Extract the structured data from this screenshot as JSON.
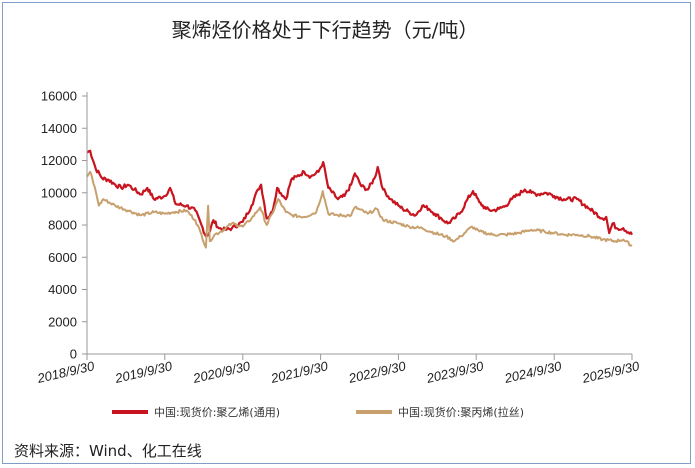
{
  "chart_data": {
    "type": "line",
    "title": "聚烯烃价格处于下行趋势（元/吨）",
    "source": "资料来源：Wind、化工在线",
    "ylim": [
      0,
      16000
    ],
    "yticks": [
      "0",
      "2000",
      "4000",
      "6000",
      "8000",
      "10000",
      "12000",
      "14000",
      "16000"
    ],
    "xlim": [
      "2018-09-30",
      "2025-09-30"
    ],
    "xticks": [
      "2018/9/30",
      "2019/9/30",
      "2020/9/30",
      "2021/9/30",
      "2022/9/30",
      "2023/9/30",
      "2024/9/30",
      "2025/9/30"
    ],
    "legend_position": "bottom",
    "grid": false,
    "series": [
      {
        "name": "中国:现货价:聚乙烯(通用)",
        "color": "#c8141e",
        "points": [
          [
            "2018-09-30",
            12500
          ],
          [
            "2018-10-15",
            12600
          ],
          [
            "2018-11-10",
            11500
          ],
          [
            "2018-12-10",
            10900
          ],
          [
            "2019-01-10",
            10800
          ],
          [
            "2019-02-10",
            10500
          ],
          [
            "2019-03-10",
            10300
          ],
          [
            "2019-04-10",
            10500
          ],
          [
            "2019-05-10",
            10200
          ],
          [
            "2019-06-10",
            9900
          ],
          [
            "2019-07-10",
            10300
          ],
          [
            "2019-08-10",
            9600
          ],
          [
            "2019-09-30",
            9800
          ],
          [
            "2019-10-25",
            10300
          ],
          [
            "2019-11-20",
            9300
          ],
          [
            "2020-01-10",
            9200
          ],
          [
            "2020-02-20",
            8900
          ],
          [
            "2020-03-20",
            8000
          ],
          [
            "2020-04-10",
            7300
          ],
          [
            "2020-04-25",
            7500
          ],
          [
            "2020-05-15",
            8300
          ],
          [
            "2020-06-10",
            7800
          ],
          [
            "2020-07-10",
            7700
          ],
          [
            "2020-08-10",
            7800
          ],
          [
            "2020-09-30",
            8200
          ],
          [
            "2020-11-10",
            9200
          ],
          [
            "2020-12-10",
            10200
          ],
          [
            "2020-12-25",
            10500
          ],
          [
            "2021-01-20",
            8400
          ],
          [
            "2021-02-15",
            8800
          ],
          [
            "2021-03-10",
            10300
          ],
          [
            "2021-04-20",
            9600
          ],
          [
            "2021-05-15",
            10800
          ],
          [
            "2021-06-10",
            11000
          ],
          [
            "2021-07-15",
            11300
          ],
          [
            "2021-08-15",
            11000
          ],
          [
            "2021-09-20",
            11300
          ],
          [
            "2021-10-12",
            11900
          ],
          [
            "2021-11-05",
            10300
          ],
          [
            "2021-12-20",
            9600
          ],
          [
            "2022-01-20",
            9800
          ],
          [
            "2022-02-20",
            10500
          ],
          [
            "2022-03-10",
            11200
          ],
          [
            "2022-04-10",
            10400
          ],
          [
            "2022-05-10",
            10200
          ],
          [
            "2022-06-10",
            10900
          ],
          [
            "2022-06-25",
            11600
          ],
          [
            "2022-07-20",
            10200
          ],
          [
            "2022-08-25",
            9600
          ],
          [
            "2022-09-30",
            9200
          ],
          [
            "2022-10-20",
            9000
          ],
          [
            "2022-11-20",
            8800
          ],
          [
            "2022-12-20",
            8600
          ],
          [
            "2023-01-20",
            9200
          ],
          [
            "2023-02-20",
            9000
          ],
          [
            "2023-03-20",
            8700
          ],
          [
            "2023-04-20",
            8400
          ],
          [
            "2023-05-20",
            8100
          ],
          [
            "2023-06-20",
            8400
          ],
          [
            "2023-07-20",
            8800
          ],
          [
            "2023-08-20",
            9600
          ],
          [
            "2023-09-15",
            10100
          ],
          [
            "2023-10-15",
            9400
          ],
          [
            "2023-11-15",
            9000
          ],
          [
            "2023-12-15",
            8900
          ],
          [
            "2024-01-15",
            9000
          ],
          [
            "2024-02-15",
            9200
          ],
          [
            "2024-03-15",
            9600
          ],
          [
            "2024-04-15",
            9900
          ],
          [
            "2024-05-15",
            10200
          ],
          [
            "2024-06-15",
            10000
          ],
          [
            "2024-07-15",
            9900
          ],
          [
            "2024-08-15",
            10000
          ],
          [
            "2024-09-15",
            9900
          ],
          [
            "2024-09-30",
            9800
          ],
          [
            "2024-11-15",
            9600
          ],
          [
            "2025-01-15",
            9600
          ],
          [
            "2025-03-15",
            9000
          ],
          [
            "2025-05-15",
            8400
          ],
          [
            "2025-06-01",
            8500
          ],
          [
            "2025-06-15",
            7500
          ],
          [
            "2025-07-01",
            8100
          ],
          [
            "2025-07-20",
            7800
          ],
          [
            "2025-08-20",
            7800
          ],
          [
            "2025-09-30",
            7400
          ]
        ]
      },
      {
        "name": "中国:现货价:聚丙烯(拉丝)",
        "color": "#c8a06e",
        "points": [
          [
            "2018-09-30",
            11000
          ],
          [
            "2018-10-15",
            11300
          ],
          [
            "2018-11-10",
            10100
          ],
          [
            "2018-11-25",
            9200
          ],
          [
            "2018-12-15",
            9600
          ],
          [
            "2019-02-10",
            9200
          ],
          [
            "2019-04-10",
            8900
          ],
          [
            "2019-06-10",
            8600
          ],
          [
            "2019-08-10",
            8800
          ],
          [
            "2019-09-30",
            8700
          ],
          [
            "2019-11-10",
            8800
          ],
          [
            "2020-01-10",
            8900
          ],
          [
            "2020-02-20",
            8300
          ],
          [
            "2020-03-20",
            7400
          ],
          [
            "2020-04-10",
            6600
          ],
          [
            "2020-04-20",
            9200
          ],
          [
            "2020-04-28",
            7000
          ],
          [
            "2020-05-20",
            7400
          ],
          [
            "2020-06-20",
            7600
          ],
          [
            "2020-08-10",
            8100
          ],
          [
            "2020-09-30",
            7900
          ],
          [
            "2020-11-10",
            8400
          ],
          [
            "2020-12-20",
            9100
          ],
          [
            "2021-01-20",
            8000
          ],
          [
            "2021-02-15",
            8700
          ],
          [
            "2021-03-15",
            9600
          ],
          [
            "2021-04-20",
            8800
          ],
          [
            "2021-05-20",
            8600
          ],
          [
            "2021-07-15",
            8500
          ],
          [
            "2021-09-10",
            8800
          ],
          [
            "2021-10-10",
            10100
          ],
          [
            "2021-11-05",
            8700
          ],
          [
            "2021-12-20",
            8600
          ],
          [
            "2022-02-20",
            8600
          ],
          [
            "2022-03-10",
            9100
          ],
          [
            "2022-05-10",
            8700
          ],
          [
            "2022-06-20",
            9000
          ],
          [
            "2022-07-20",
            8300
          ],
          [
            "2022-09-30",
            8100
          ],
          [
            "2022-11-20",
            7900
          ],
          [
            "2023-01-20",
            7800
          ],
          [
            "2023-03-20",
            7500
          ],
          [
            "2023-05-10",
            7300
          ],
          [
            "2023-06-20",
            7000
          ],
          [
            "2023-07-20",
            7300
          ],
          [
            "2023-09-10",
            7900
          ],
          [
            "2023-10-15",
            7600
          ],
          [
            "2023-12-15",
            7400
          ],
          [
            "2024-02-15",
            7400
          ],
          [
            "2024-04-15",
            7500
          ],
          [
            "2024-06-15",
            7700
          ],
          [
            "2024-08-15",
            7600
          ],
          [
            "2024-09-30",
            7500
          ],
          [
            "2024-11-15",
            7400
          ],
          [
            "2025-01-15",
            7400
          ],
          [
            "2025-03-15",
            7300
          ],
          [
            "2025-05-15",
            7100
          ],
          [
            "2025-07-15",
            7000
          ],
          [
            "2025-08-20",
            7100
          ],
          [
            "2025-09-30",
            6700
          ]
        ]
      }
    ]
  }
}
